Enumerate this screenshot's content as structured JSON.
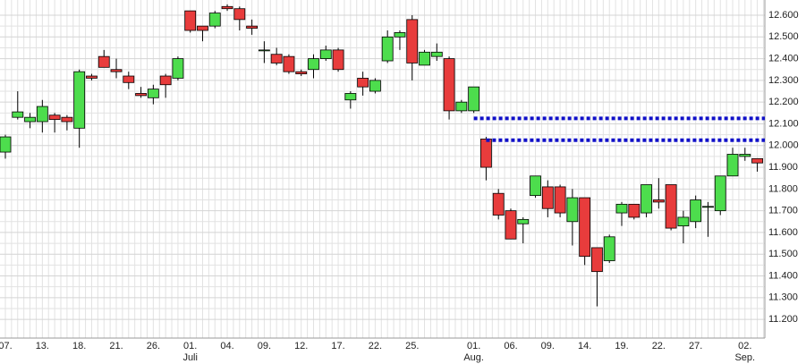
{
  "chart_data": {
    "type": "candlestick",
    "categories": [
      "07.",
      null,
      null,
      "13.",
      null,
      null,
      "18.",
      null,
      null,
      "21.",
      null,
      null,
      "26.",
      null,
      null,
      "01.",
      null,
      null,
      "04.",
      null,
      null,
      "09.",
      null,
      null,
      "12.",
      null,
      null,
      "17.",
      null,
      null,
      "22.",
      null,
      null,
      "25.",
      null,
      null,
      null,
      null,
      "01.",
      null,
      null,
      "06.",
      null,
      null,
      "09.",
      null,
      null,
      "14.",
      null,
      null,
      "19.",
      null,
      null,
      "22.",
      null,
      null,
      "27.",
      null,
      null,
      null,
      "02.",
      null
    ],
    "months": [
      null,
      null,
      null,
      null,
      null,
      null,
      null,
      null,
      null,
      null,
      null,
      null,
      null,
      null,
      null,
      "Juli",
      null,
      null,
      null,
      null,
      null,
      null,
      null,
      null,
      null,
      null,
      null,
      null,
      null,
      null,
      null,
      null,
      null,
      null,
      null,
      null,
      null,
      null,
      "Aug.",
      null,
      null,
      null,
      null,
      null,
      null,
      null,
      null,
      null,
      null,
      null,
      null,
      null,
      null,
      null,
      null,
      null,
      null,
      null,
      null,
      null,
      "Sep.",
      null
    ],
    "open": [
      11.97,
      12.13,
      12.11,
      12.11,
      12.14,
      12.13,
      12.08,
      12.32,
      12.41,
      12.35,
      12.32,
      12.24,
      12.22,
      12.32,
      12.31,
      12.62,
      12.55,
      12.55,
      12.64,
      12.63,
      12.55,
      12.44,
      12.42,
      12.41,
      12.34,
      12.35,
      12.4,
      12.44,
      12.21,
      12.31,
      12.25,
      12.39,
      12.5,
      12.58,
      12.37,
      12.41,
      12.4,
      12.16,
      12.16,
      12.03,
      11.78,
      11.7,
      11.64,
      11.77,
      11.81,
      11.81,
      11.65,
      11.76,
      11.53,
      11.47,
      11.69,
      11.73,
      11.69,
      11.75,
      11.82,
      11.63,
      11.65,
      11.72,
      11.7,
      11.86,
      11.95,
      11.94
    ],
    "high": [
      12.05,
      12.25,
      12.15,
      12.21,
      12.15,
      12.14,
      12.35,
      12.33,
      12.44,
      12.4,
      12.34,
      12.27,
      12.28,
      12.33,
      12.41,
      12.62,
      12.55,
      12.62,
      12.65,
      12.64,
      12.58,
      12.48,
      12.45,
      12.42,
      12.35,
      12.42,
      12.46,
      12.45,
      12.25,
      12.34,
      12.31,
      12.53,
      12.53,
      12.6,
      12.44,
      12.47,
      12.41,
      12.21,
      12.27,
      12.04,
      11.8,
      11.71,
      11.67,
      11.86,
      11.84,
      11.82,
      11.8,
      11.76,
      11.53,
      11.59,
      11.74,
      11.73,
      11.82,
      11.85,
      11.82,
      11.7,
      11.77,
      11.74,
      11.86,
      11.99,
      11.99,
      11.94
    ],
    "low": [
      11.94,
      12.12,
      12.08,
      12.06,
      12.06,
      12.07,
      11.99,
      12.3,
      12.36,
      12.31,
      12.26,
      12.22,
      12.19,
      12.22,
      12.3,
      12.52,
      12.48,
      12.54,
      12.62,
      12.53,
      12.51,
      12.38,
      12.37,
      12.33,
      12.32,
      12.31,
      12.39,
      12.34,
      12.17,
      12.23,
      12.24,
      12.38,
      12.44,
      12.3,
      12.37,
      12.39,
      12.12,
      12.15,
      12.15,
      11.84,
      11.66,
      11.57,
      11.55,
      11.76,
      11.67,
      11.67,
      11.54,
      11.45,
      11.26,
      11.46,
      11.63,
      11.66,
      11.67,
      11.71,
      11.61,
      11.55,
      11.62,
      11.58,
      11.68,
      11.86,
      11.93,
      11.88
    ],
    "close": [
      12.04,
      12.155,
      12.13,
      12.18,
      12.12,
      12.11,
      12.34,
      12.31,
      12.36,
      12.34,
      12.29,
      12.23,
      12.26,
      12.28,
      12.4,
      12.53,
      12.53,
      12.61,
      12.63,
      12.58,
      12.54,
      12.44,
      12.38,
      12.34,
      12.33,
      12.4,
      12.44,
      12.35,
      12.24,
      12.27,
      12.3,
      12.5,
      12.52,
      12.38,
      12.43,
      12.43,
      12.16,
      12.2,
      12.27,
      11.9,
      11.68,
      11.57,
      11.66,
      11.86,
      11.71,
      11.69,
      11.76,
      11.49,
      11.42,
      11.58,
      11.73,
      11.67,
      11.82,
      11.74,
      11.62,
      11.67,
      11.75,
      11.72,
      11.86,
      11.96,
      11.96,
      11.92
    ],
    "up_color": "#4ddd4d",
    "down_color": "#e83c3c",
    "levels": [
      12.125,
      12.025
    ],
    "level_color": "#1010c8",
    "ylim": [
      11.114,
      12.67
    ],
    "yticks": [
      {
        "value": 11.2,
        "label": "11.200"
      },
      {
        "value": 11.3,
        "label": "11.300"
      },
      {
        "value": 11.4,
        "label": "11.400"
      },
      {
        "value": 11.5,
        "label": "11.500"
      },
      {
        "value": 11.6,
        "label": "11.600"
      },
      {
        "value": 11.7,
        "label": "11.700"
      },
      {
        "value": 11.8,
        "label": "11.800"
      },
      {
        "value": 11.9,
        "label": "11.900"
      },
      {
        "value": 12.0,
        "label": "12.000"
      },
      {
        "value": 12.1,
        "label": "12.100"
      },
      {
        "value": 12.2,
        "label": "12.200"
      },
      {
        "value": 12.3,
        "label": "12.300"
      },
      {
        "value": 12.4,
        "label": "12.400"
      },
      {
        "value": 12.5,
        "label": "12.500"
      },
      {
        "value": 12.6,
        "label": "12.600"
      }
    ],
    "grid": true
  }
}
